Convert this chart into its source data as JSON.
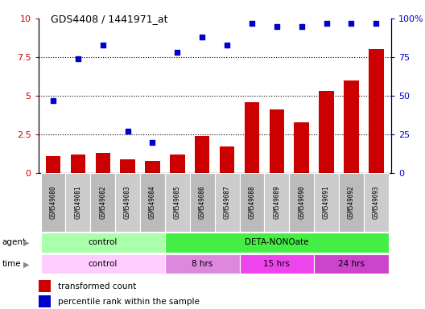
{
  "title": "GDS4408 / 1441971_at",
  "samples": [
    "GSM549080",
    "GSM549081",
    "GSM549082",
    "GSM549083",
    "GSM549084",
    "GSM549085",
    "GSM549086",
    "GSM549087",
    "GSM549088",
    "GSM549089",
    "GSM549090",
    "GSM549091",
    "GSM549092",
    "GSM549093"
  ],
  "bar_values": [
    1.1,
    1.2,
    1.3,
    0.9,
    0.8,
    1.2,
    2.4,
    1.7,
    4.6,
    4.1,
    3.3,
    5.3,
    6.0,
    8.0
  ],
  "dot_values": [
    47,
    74,
    83,
    27,
    20,
    78,
    88,
    83,
    97,
    95,
    95,
    97,
    97,
    97
  ],
  "bar_color": "#cc0000",
  "dot_color": "#0000cc",
  "ylim_left": [
    0,
    10
  ],
  "ylim_right": [
    0,
    100
  ],
  "yticks_left": [
    0,
    2.5,
    5.0,
    7.5,
    10
  ],
  "yticks_right": [
    0,
    25,
    50,
    75,
    100
  ],
  "agent_groups": [
    {
      "label": "control",
      "start": 0,
      "end": 5,
      "color": "#aaffaa"
    },
    {
      "label": "DETA-NONOate",
      "start": 5,
      "end": 14,
      "color": "#44ee44"
    }
  ],
  "time_groups": [
    {
      "label": "control",
      "start": 0,
      "end": 5,
      "color": "#ffccff"
    },
    {
      "label": "8 hrs",
      "start": 5,
      "end": 8,
      "color": "#dd88dd"
    },
    {
      "label": "15 hrs",
      "start": 8,
      "end": 11,
      "color": "#ee44ee"
    },
    {
      "label": "24 hrs",
      "start": 11,
      "end": 14,
      "color": "#cc44cc"
    }
  ],
  "legend_bar_label": "transformed count",
  "legend_dot_label": "percentile rank within the sample",
  "agent_label": "agent",
  "time_label": "time",
  "background_color": "#ffffff",
  "cell_colors": [
    "#bbbbbb",
    "#cccccc"
  ]
}
